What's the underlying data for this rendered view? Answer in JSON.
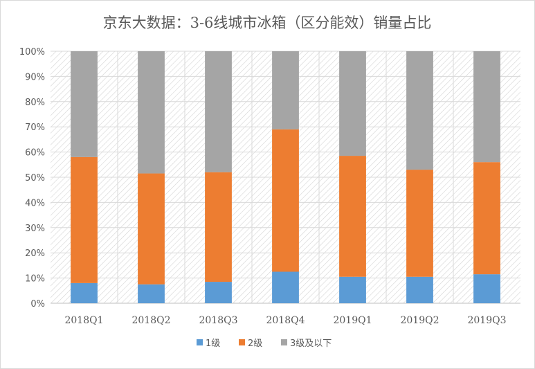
{
  "chart_data": {
    "type": "bar",
    "stacked": true,
    "percent_stacked": true,
    "title": "京东大数据：3-6线城市冰箱（区分能效）销量占比",
    "categories": [
      "2018Q1",
      "2018Q2",
      "2018Q3",
      "2018Q4",
      "2019Q1",
      "2019Q2",
      "2019Q3"
    ],
    "y_ticks": [
      "0%",
      "10%",
      "20%",
      "30%",
      "40%",
      "50%",
      "60%",
      "70%",
      "80%",
      "90%",
      "100%"
    ],
    "ylim": [
      0,
      100
    ],
    "y_unit": "%",
    "series": [
      {
        "name": "1级",
        "color": "#5b9bd5",
        "values": [
          8,
          7.5,
          8.5,
          12.5,
          10.5,
          10.5,
          11.5
        ]
      },
      {
        "name": "2级",
        "color": "#ed7d31",
        "values": [
          50,
          44,
          43.5,
          56.5,
          48,
          42.5,
          44.5
        ]
      },
      {
        "name": "3级及以下",
        "color": "#a5a5a5",
        "values": [
          42,
          48.5,
          48,
          31,
          41.5,
          47,
          44
        ]
      }
    ],
    "legend_position": "bottom",
    "gridlines": true,
    "plot_background": "diagonal-hatch"
  }
}
